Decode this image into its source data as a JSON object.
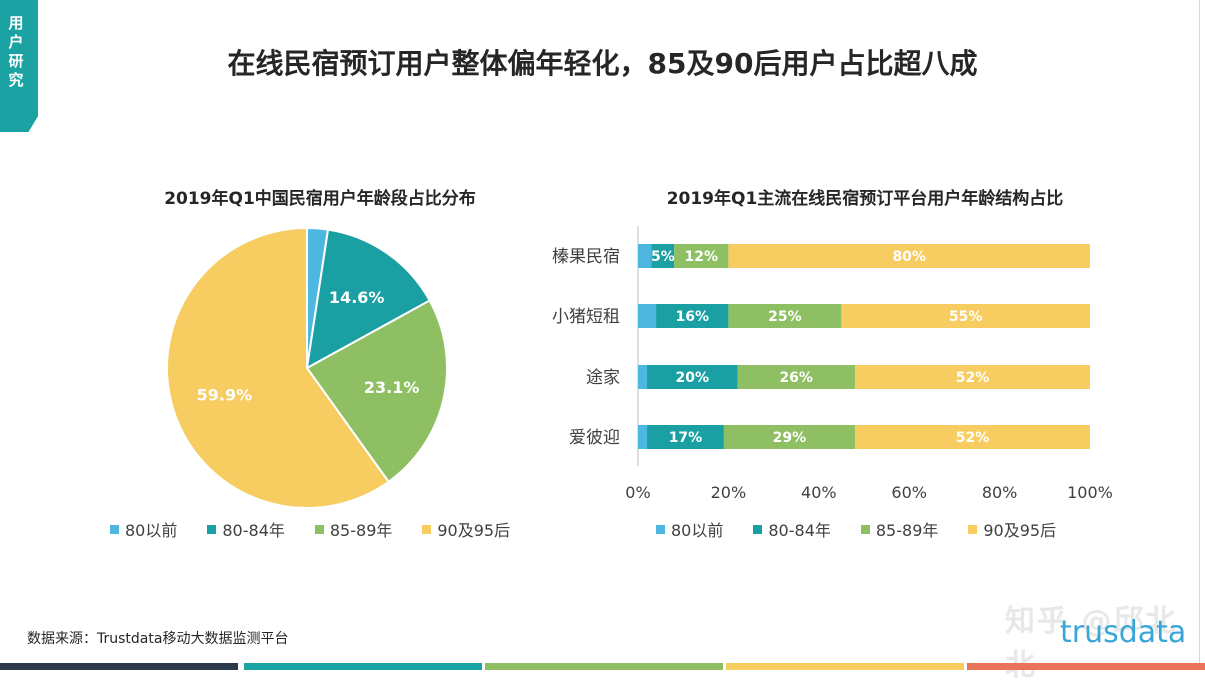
{
  "section_tag": "用户研究",
  "title": "在线民宿预订用户整体偏年轻化，85及90后用户占比超八成",
  "source": "数据来源：Trustdata移动大数据监测平台",
  "watermark": "知乎 @邱北北",
  "brand_logo": "trusdata",
  "colors": {
    "80以前": "#4db7e0",
    "80-84年": "#1a9fa3",
    "85-89年": "#8fbf63",
    "90及95后": "#f7cc60",
    "accent": "#1ba3a4"
  },
  "chart_data": [
    {
      "type": "pie",
      "title": "2019年Q1中国民宿用户年龄段占比分布",
      "categories": [
        "80以前",
        "80-84年",
        "85-89年",
        "90及95后"
      ],
      "values": [
        2.4,
        14.6,
        23.1,
        59.9
      ],
      "data_labels": [
        "",
        "14.6%",
        "23.1%",
        "59.9%"
      ],
      "legend": [
        "80以前",
        "80-84年",
        "85-89年",
        "90及95后"
      ],
      "legend_position": "bottom"
    },
    {
      "type": "bar",
      "orientation": "horizontal",
      "stacked": true,
      "title": "2019年Q1主流在线民宿预订平台用户年龄结构占比",
      "categories": [
        "榛果民宿",
        "小猪短租",
        "途家",
        "爱彼迎"
      ],
      "series": [
        {
          "name": "80以前",
          "values": [
            3,
            4,
            2,
            2
          ],
          "labels": [
            "",
            "",
            "",
            ""
          ]
        },
        {
          "name": "80-84年",
          "values": [
            5,
            16,
            20,
            17
          ],
          "labels": [
            "5%",
            "16%",
            "20%",
            "17%"
          ]
        },
        {
          "name": "85-89年",
          "values": [
            12,
            25,
            26,
            29
          ],
          "labels": [
            "12%",
            "25%",
            "26%",
            "29%"
          ]
        },
        {
          "name": "90及95后",
          "values": [
            80,
            55,
            52,
            52
          ],
          "labels": [
            "80%",
            "55%",
            "52%",
            "52%"
          ]
        }
      ],
      "xlim": [
        0,
        100
      ],
      "xticks": [
        "0%",
        "20%",
        "40%",
        "60%",
        "80%",
        "100%"
      ],
      "legend": [
        "80以前",
        "80-84年",
        "85-89年",
        "90及95后"
      ],
      "legend_position": "bottom"
    }
  ],
  "footer_colors": [
    "#2b3a4a",
    "#1ba3a4",
    "#8fbf63",
    "#f7cc60",
    "#e8735a"
  ]
}
